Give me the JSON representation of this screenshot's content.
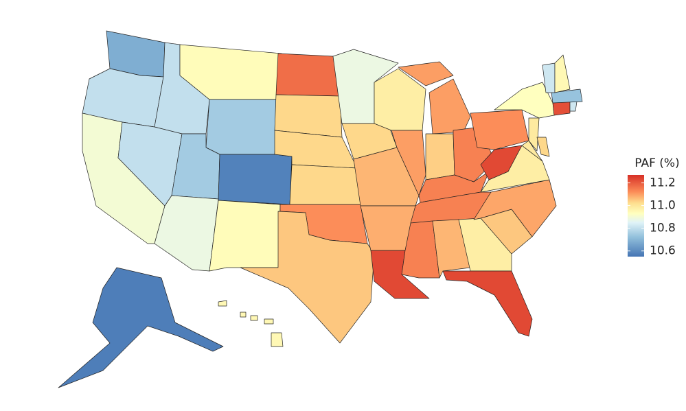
{
  "chart_data": {
    "type": "choropleth",
    "legend_title": "PAF (%)",
    "values": [
      10.68,
      10.8,
      10.9,
      10.8,
      10.8,
      10.94,
      10.75,
      10.75,
      10.58,
      10.88,
      10.94,
      11.17,
      11.03,
      11.03,
      11.03,
      11.12,
      11.05,
      10.88,
      11.03,
      11.07,
      11.08,
      11.23,
      10.98,
      11.1,
      11.1,
      11.04,
      11.14,
      11.14,
      11.14,
      11.14,
      11.07,
      10.98,
      11.23,
      11.05,
      11.09,
      10.98,
      11.23,
      11.12,
      10.93,
      10.99,
      10.99,
      11.03,
      11.22,
      10.82,
      10.73,
      10.82,
      10.95,
      10.57,
      10.95
    ],
    "colorscale": [
      [
        10.55,
        "#4575b4"
      ],
      [
        10.72,
        "#91bfdb"
      ],
      [
        10.85,
        "#e0f3f8"
      ],
      [
        10.93,
        "#ffffbf"
      ],
      [
        11.02,
        "#fee090"
      ],
      [
        11.12,
        "#fc8d59"
      ],
      [
        11.27,
        "#d73027"
      ]
    ],
    "clim": [
      10.55,
      11.27
    ],
    "cticks": [
      11.2,
      {
        "value": 11,
        "label": "11.0"
      },
      10.8,
      10.6
    ]
  }
}
